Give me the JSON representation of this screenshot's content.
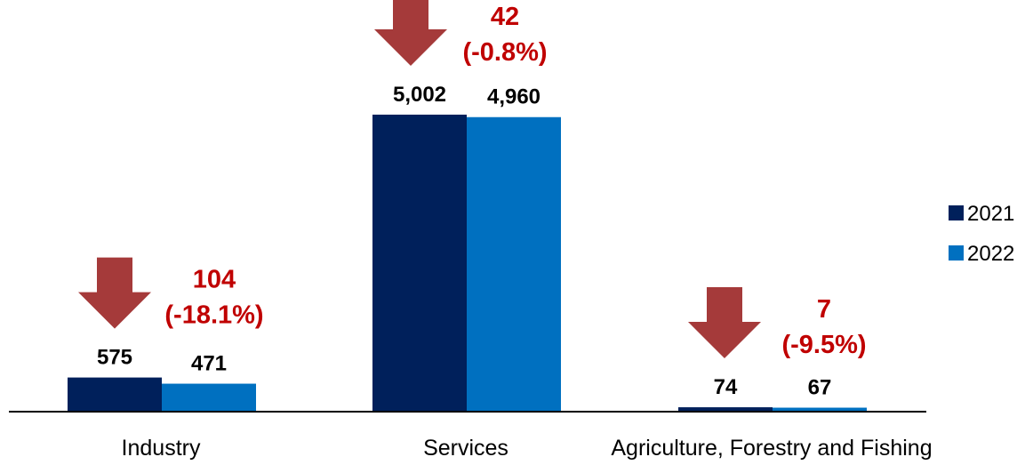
{
  "chart_data": {
    "type": "bar",
    "categories": [
      "Industry",
      "Services",
      "Agriculture, Forestry and Fishing"
    ],
    "series": [
      {
        "name": "2021",
        "values": [
          575,
          5002,
          74
        ],
        "labels": [
          "575",
          "5,002",
          "74"
        ]
      },
      {
        "name": "2022",
        "values": [
          471,
          4960,
          67
        ],
        "labels": [
          "471",
          "4,960",
          "67"
        ]
      }
    ],
    "annotations": [
      {
        "category": "Industry",
        "direction": "down",
        "change": "104",
        "pct": "(-18.1%)"
      },
      {
        "category": "Services",
        "direction": "down",
        "change": "42",
        "pct": "(-0.8%)"
      },
      {
        "category": "Agriculture, Forestry and Fishing",
        "direction": "down",
        "change": "7",
        "pct": "(-9.5%)"
      }
    ],
    "ylim": [
      0,
      5600
    ],
    "grid": false,
    "legend_position": "right",
    "colors": {
      "2021": "#00205b",
      "2022": "#0070c0",
      "annotation": "#c00000",
      "arrow": "#a53a3a",
      "axis": "#000000"
    }
  }
}
